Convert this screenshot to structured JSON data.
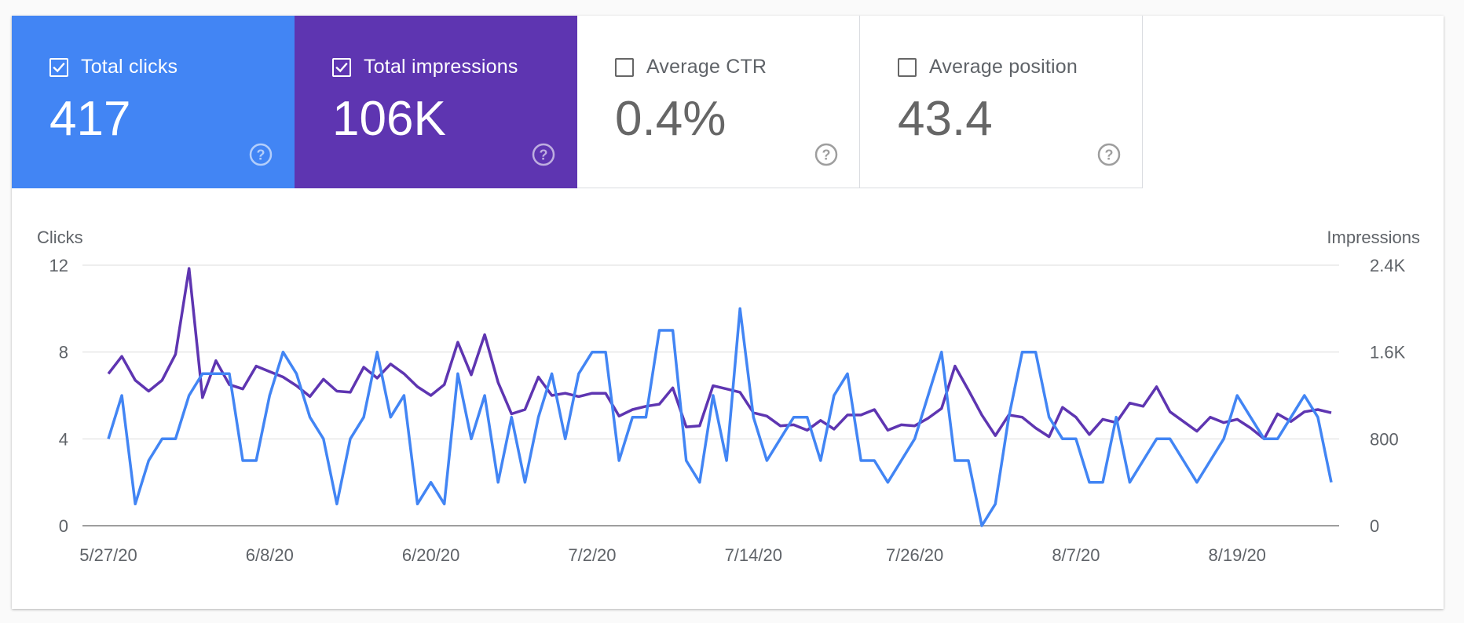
{
  "metrics": [
    {
      "label": "Total clicks",
      "value": "417",
      "checked": true
    },
    {
      "label": "Total impressions",
      "value": "106K",
      "checked": true
    },
    {
      "label": "Average CTR",
      "value": "0.4%",
      "checked": false
    },
    {
      "label": "Average position",
      "value": "43.4",
      "checked": false
    }
  ],
  "colors": {
    "clicks": "#4285f4",
    "impressions": "#5e35b1"
  },
  "chart_data": {
    "type": "line",
    "y_left_label": "Clicks",
    "y_right_label": "Impressions",
    "y_left_ticks": [
      "0",
      "4",
      "8",
      "12"
    ],
    "y_right_ticks": [
      "0",
      "800",
      "1.6K",
      "2.4K"
    ],
    "ylim_left": [
      0,
      12
    ],
    "ylim_right": [
      0,
      2400
    ],
    "x_tick_labels": [
      "5/27/20",
      "6/8/20",
      "6/20/20",
      "7/2/20",
      "7/14/20",
      "7/26/20",
      "8/7/20",
      "8/19/20"
    ],
    "x_tick_indices": [
      0,
      12,
      24,
      36,
      48,
      60,
      72,
      84
    ],
    "grid": true,
    "series": [
      {
        "name": "Total clicks",
        "axis": "left",
        "values": [
          4,
          6,
          1,
          3,
          4,
          4,
          6,
          7,
          7,
          7,
          3,
          3,
          6,
          8,
          7,
          5,
          4,
          1,
          4,
          5,
          8,
          5,
          6,
          1,
          2,
          1,
          7,
          4,
          6,
          2,
          5,
          2,
          5,
          7,
          4,
          7,
          8,
          8,
          3,
          5,
          5,
          9,
          9,
          3,
          2,
          6,
          3,
          10,
          5,
          3,
          4,
          5,
          5,
          3,
          6,
          7,
          3,
          3,
          2,
          3,
          4,
          6,
          8,
          3,
          3,
          0,
          1,
          5,
          8,
          8,
          5,
          4,
          4,
          2,
          2,
          5,
          2,
          3,
          4,
          4,
          3,
          2,
          3,
          4,
          6,
          5,
          4,
          4,
          5,
          6,
          5,
          2
        ]
      },
      {
        "name": "Total impressions",
        "axis": "right",
        "values": [
          1400,
          1560,
          1340,
          1240,
          1340,
          1580,
          2370,
          1180,
          1520,
          1300,
          1260,
          1470,
          1420,
          1370,
          1290,
          1190,
          1350,
          1240,
          1230,
          1460,
          1360,
          1490,
          1400,
          1280,
          1200,
          1300,
          1690,
          1390,
          1760,
          1320,
          1030,
          1070,
          1370,
          1200,
          1220,
          1190,
          1220,
          1220,
          1010,
          1070,
          1100,
          1120,
          1270,
          910,
          920,
          1290,
          1260,
          1230,
          1040,
          1010,
          920,
          930,
          880,
          970,
          890,
          1020,
          1020,
          1070,
          880,
          930,
          920,
          990,
          1080,
          1470,
          1250,
          1020,
          830,
          1020,
          1000,
          900,
          820,
          1090,
          1000,
          840,
          980,
          950,
          1130,
          1100,
          1280,
          1050,
          960,
          870,
          1000,
          950,
          980,
          900,
          800,
          1030,
          960,
          1050,
          1070,
          1040
        ]
      }
    ]
  }
}
